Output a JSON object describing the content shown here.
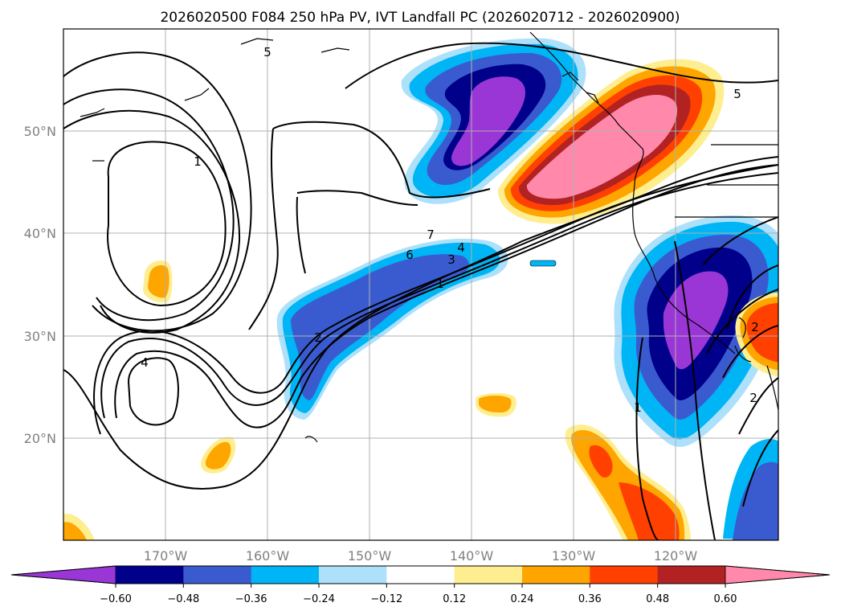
{
  "title": "2026020500 F084 250 hPa PV, IVT Landfall PC (2026020712 - 2026020900)",
  "map": {
    "lon_range": [
      -180,
      -110
    ],
    "lat_range": [
      10,
      60
    ],
    "lon_ticks": [
      {
        "value": -170,
        "label": "170°W"
      },
      {
        "value": -160,
        "label": "160°W"
      },
      {
        "value": -150,
        "label": "150°W"
      },
      {
        "value": -140,
        "label": "140°W"
      },
      {
        "value": -130,
        "label": "130°W"
      },
      {
        "value": -120,
        "label": "120°W"
      }
    ],
    "lat_ticks": [
      {
        "value": 20,
        "label": "20°N"
      },
      {
        "value": 30,
        "label": "30°N"
      },
      {
        "value": 40,
        "label": "40°N"
      },
      {
        "value": 50,
        "label": "50°N"
      }
    ],
    "grid": true,
    "contour_labels": [
      "5",
      "1",
      "4",
      "7",
      "6",
      "4",
      "3",
      "1",
      "2",
      "5",
      "1",
      "2",
      "2"
    ]
  },
  "colorbar": {
    "orientation": "horizontal",
    "extend": "both",
    "colors": [
      "#9a36d6",
      "#00008b",
      "#3a5bd0",
      "#00b5f5",
      "#ade0fa",
      "#ffffff",
      "#ffee90",
      "#ffa500",
      "#ff4000",
      "#b22222",
      "#ff88ab"
    ],
    "tick_labels": [
      "−0.60",
      "−0.48",
      "−0.36",
      "−0.24",
      "−0.12",
      "0.12",
      "0.24",
      "0.36",
      "0.48",
      "0.60"
    ]
  }
}
